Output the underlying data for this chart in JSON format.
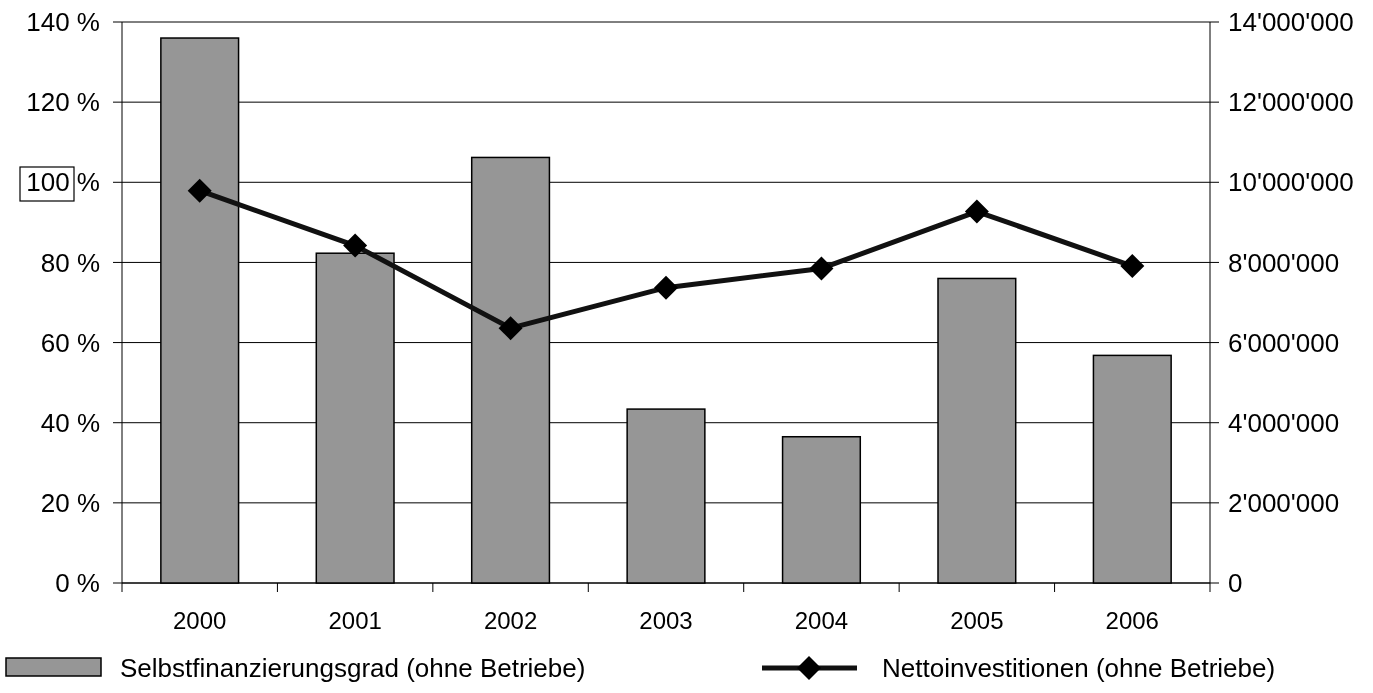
{
  "chart_data": {
    "type": "bar",
    "categories": [
      "2000",
      "2001",
      "2002",
      "2003",
      "2004",
      "2005",
      "2006"
    ],
    "series": [
      {
        "name": "Selbstfinanzierungsgrad (ohne Betriebe)",
        "color": "#969696",
        "values": [
          136,
          82.3,
          106.2,
          43.4,
          36.5,
          76,
          56.8
        ]
      },
      {
        "name": "Nettoinvestitionen (ohne Betriebe)",
        "type": "line",
        "axis": "y2",
        "color": "#111111",
        "marker": "diamond",
        "values": [
          9790000,
          8420000,
          6360000,
          7370000,
          7850000,
          9270000,
          7910000
        ]
      }
    ],
    "ylim": [
      0,
      140
    ],
    "yticks": [
      {
        "value": 0,
        "label": "0 %"
      },
      {
        "value": 20,
        "label": "20 %"
      },
      {
        "value": 40,
        "label": "40 %"
      },
      {
        "value": 60,
        "label": "60 %"
      },
      {
        "value": 80,
        "label": "80 %"
      },
      {
        "value": 100,
        "label": "100 %"
      },
      {
        "value": 120,
        "label": "120 %"
      },
      {
        "value": 140,
        "label": "140 %"
      }
    ],
    "y2lim": [
      0,
      14000000
    ],
    "y2ticks": [
      0,
      {
        "value": 2000000,
        "label": "2'000'000"
      },
      {
        "value": 4000000,
        "label": "4'000'000"
      },
      {
        "value": 6000000,
        "label": "6'000'000"
      },
      {
        "value": 8000000,
        "label": "8'000'000"
      },
      {
        "value": 10000000,
        "label": "10'000'000"
      },
      {
        "value": 12000000,
        "label": "12'000'000"
      },
      {
        "value": 14000000,
        "label": "14'000'000"
      }
    ],
    "grid": "y",
    "legend": "bottom"
  }
}
